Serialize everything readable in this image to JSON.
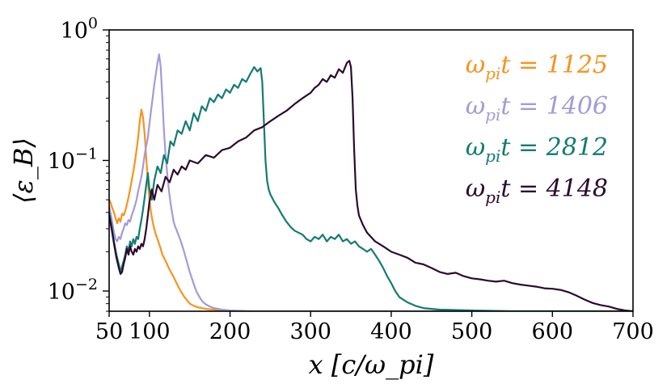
{
  "chart_data": {
    "type": "line",
    "title": "",
    "xlabel": "x [c/ω_pi]",
    "ylabel": "⟨ε_B⟩",
    "xlim": [
      50,
      700
    ],
    "ylim": [
      0.007,
      1.0
    ],
    "yscale": "log",
    "grid": false,
    "legend_position": "top-right",
    "x_ticks": [
      50,
      100,
      200,
      300,
      400,
      500,
      600,
      700
    ],
    "x_tick_labels": [
      "50",
      "100",
      "200",
      "300",
      "400",
      "500",
      "600",
      "700"
    ],
    "y_ticks": [
      0.01,
      0.1,
      1.0
    ],
    "y_tick_labels": [
      {
        "base": "10",
        "exp": "−2"
      },
      {
        "base": "10",
        "exp": "−1"
      },
      {
        "base": "10",
        "exp": "0"
      }
    ],
    "series": [
      {
        "name": "ω_pi t = 1125",
        "legend_prefix": "ω",
        "legend_sub": "pi",
        "legend_suffix": "t = 1125",
        "color": "#f7931e",
        "x": [
          50,
          52,
          54,
          56,
          58,
          60,
          62,
          64,
          66,
          68,
          70,
          72,
          74,
          76,
          78,
          80,
          82,
          84,
          86,
          88,
          90,
          92,
          94,
          96,
          98,
          100,
          102,
          104,
          106,
          108,
          110,
          112,
          114,
          116,
          118,
          120,
          122,
          124,
          126,
          128,
          130,
          132,
          134,
          136,
          138,
          140,
          142,
          144,
          146,
          148,
          150,
          155,
          160,
          170,
          180,
          190,
          200,
          230,
          260,
          300,
          400,
          500,
          600,
          700
        ],
        "y": [
          0.05,
          0.047,
          0.043,
          0.04,
          0.036,
          0.033,
          0.036,
          0.034,
          0.039,
          0.038,
          0.041,
          0.046,
          0.052,
          0.06,
          0.07,
          0.082,
          0.098,
          0.12,
          0.15,
          0.2,
          0.245,
          0.215,
          0.16,
          0.105,
          0.07,
          0.05,
          0.04,
          0.034,
          0.03,
          0.027,
          0.025,
          0.023,
          0.021,
          0.019,
          0.018,
          0.017,
          0.016,
          0.015,
          0.0142,
          0.0135,
          0.0128,
          0.0121,
          0.0114,
          0.0108,
          0.0102,
          0.0097,
          0.0093,
          0.0089,
          0.0086,
          0.0083,
          0.008,
          0.0077,
          0.0075,
          0.0073,
          0.0072,
          0.0071,
          0.007,
          0.007,
          0.007,
          0.007,
          0.007,
          0.007,
          0.007,
          0.007
        ]
      },
      {
        "name": "ω_pi t = 1406",
        "legend_prefix": "ω",
        "legend_sub": "pi",
        "legend_suffix": "t = 1406",
        "color": "#a49ad8",
        "x": [
          50,
          53,
          56,
          58,
          60,
          62,
          64,
          66,
          68,
          70,
          72,
          74,
          76,
          78,
          80,
          82,
          84,
          86,
          88,
          90,
          92,
          94,
          96,
          98,
          100,
          102,
          104,
          106,
          108,
          110,
          112,
          114,
          116,
          118,
          120,
          122,
          124,
          126,
          128,
          130,
          132,
          134,
          136,
          138,
          140,
          142,
          144,
          146,
          148,
          150,
          154,
          158,
          162,
          166,
          170,
          175,
          180,
          190,
          200,
          230,
          300,
          400,
          500,
          600,
          700
        ],
        "y": [
          0.045,
          0.036,
          0.028,
          0.025,
          0.024,
          0.026,
          0.025,
          0.028,
          0.03,
          0.033,
          0.032,
          0.035,
          0.034,
          0.038,
          0.041,
          0.045,
          0.05,
          0.058,
          0.066,
          0.075,
          0.09,
          0.11,
          0.13,
          0.15,
          0.19,
          0.24,
          0.3,
          0.38,
          0.46,
          0.56,
          0.65,
          0.52,
          0.3,
          0.17,
          0.11,
          0.08,
          0.06,
          0.048,
          0.04,
          0.034,
          0.031,
          0.029,
          0.027,
          0.025,
          0.023,
          0.021,
          0.019,
          0.0172,
          0.0155,
          0.014,
          0.0118,
          0.01,
          0.009,
          0.0083,
          0.0079,
          0.0076,
          0.0074,
          0.0072,
          0.0071,
          0.007,
          0.007,
          0.007,
          0.007,
          0.007,
          0.007
        ]
      },
      {
        "name": "ω_pi t = 2812",
        "legend_prefix": "ω",
        "legend_sub": "pi",
        "legend_suffix": "t = 2812",
        "color": "#137b73",
        "x": [
          50,
          53,
          56,
          59,
          62,
          64,
          66,
          68,
          70,
          72,
          74,
          76,
          78,
          80,
          82,
          84,
          86,
          88,
          90,
          92,
          94,
          96,
          98,
          100,
          103,
          106,
          110,
          114,
          118,
          122,
          126,
          130,
          135,
          140,
          145,
          150,
          155,
          160,
          165,
          170,
          175,
          180,
          185,
          190,
          195,
          200,
          205,
          210,
          215,
          220,
          225,
          230,
          234,
          238,
          240,
          242,
          244,
          246,
          248,
          250,
          255,
          260,
          265,
          270,
          275,
          280,
          285,
          290,
          295,
          300,
          305,
          310,
          315,
          320,
          325,
          330,
          335,
          340,
          345,
          350,
          355,
          360,
          365,
          370,
          375,
          380,
          385,
          390,
          395,
          400,
          405,
          410,
          420,
          430,
          440,
          460,
          500,
          550,
          600,
          650,
          700
        ],
        "y": [
          0.04,
          0.032,
          0.024,
          0.019,
          0.016,
          0.014,
          0.0155,
          0.017,
          0.019,
          0.022,
          0.02,
          0.024,
          0.022,
          0.025,
          0.023,
          0.026,
          0.025,
          0.03,
          0.035,
          0.042,
          0.052,
          0.065,
          0.08,
          0.06,
          0.05,
          0.07,
          0.09,
          0.08,
          0.11,
          0.095,
          0.14,
          0.13,
          0.17,
          0.16,
          0.2,
          0.17,
          0.23,
          0.2,
          0.26,
          0.24,
          0.3,
          0.28,
          0.32,
          0.3,
          0.35,
          0.33,
          0.38,
          0.36,
          0.42,
          0.4,
          0.46,
          0.52,
          0.48,
          0.51,
          0.4,
          0.2,
          0.1,
          0.07,
          0.06,
          0.055,
          0.048,
          0.043,
          0.038,
          0.034,
          0.031,
          0.029,
          0.028,
          0.027,
          0.025,
          0.024,
          0.026,
          0.025,
          0.027,
          0.024,
          0.026,
          0.025,
          0.027,
          0.024,
          0.025,
          0.023,
          0.024,
          0.022,
          0.021,
          0.02,
          0.021,
          0.019,
          0.017,
          0.015,
          0.013,
          0.0115,
          0.01,
          0.009,
          0.0082,
          0.0077,
          0.0074,
          0.0072,
          0.0071,
          0.007,
          0.007,
          0.007,
          0.007
        ]
      },
      {
        "name": "ω_pi t = 4148",
        "legend_prefix": "ω",
        "legend_sub": "pi",
        "legend_suffix": "t = 4148",
        "color": "#2d0a2e",
        "x": [
          50,
          53,
          56,
          59,
          62,
          64,
          66,
          68,
          70,
          72,
          74,
          76,
          78,
          80,
          82,
          84,
          86,
          88,
          90,
          92,
          94,
          96,
          98,
          100,
          103,
          106,
          110,
          115,
          120,
          125,
          130,
          135,
          140,
          145,
          150,
          160,
          170,
          180,
          190,
          200,
          210,
          220,
          230,
          240,
          250,
          260,
          270,
          280,
          290,
          300,
          305,
          310,
          315,
          320,
          325,
          330,
          335,
          340,
          345,
          348,
          350,
          352,
          354,
          356,
          358,
          360,
          365,
          370,
          380,
          390,
          400,
          410,
          420,
          430,
          440,
          450,
          460,
          470,
          480,
          490,
          500,
          510,
          520,
          530,
          540,
          550,
          560,
          570,
          580,
          590,
          600,
          610,
          620,
          630,
          640,
          650,
          660,
          670,
          680,
          690,
          700
        ],
        "y": [
          0.038,
          0.03,
          0.023,
          0.018,
          0.015,
          0.0135,
          0.014,
          0.016,
          0.018,
          0.021,
          0.019,
          0.022,
          0.02,
          0.019,
          0.021,
          0.02,
          0.022,
          0.021,
          0.023,
          0.022,
          0.025,
          0.03,
          0.038,
          0.048,
          0.06,
          0.05,
          0.065,
          0.058,
          0.075,
          0.068,
          0.085,
          0.078,
          0.09,
          0.085,
          0.1,
          0.095,
          0.11,
          0.105,
          0.12,
          0.125,
          0.14,
          0.15,
          0.17,
          0.18,
          0.2,
          0.22,
          0.24,
          0.27,
          0.3,
          0.33,
          0.36,
          0.38,
          0.42,
          0.4,
          0.45,
          0.43,
          0.5,
          0.47,
          0.56,
          0.58,
          0.52,
          0.3,
          0.12,
          0.06,
          0.045,
          0.038,
          0.032,
          0.028,
          0.024,
          0.022,
          0.02,
          0.019,
          0.018,
          0.0165,
          0.016,
          0.015,
          0.014,
          0.0135,
          0.0138,
          0.013,
          0.0125,
          0.0123,
          0.012,
          0.0118,
          0.012,
          0.0115,
          0.0112,
          0.011,
          0.0108,
          0.0105,
          0.0104,
          0.0102,
          0.0098,
          0.0092,
          0.0086,
          0.0081,
          0.0078,
          0.0076,
          0.0073,
          0.0071,
          0.007
        ]
      }
    ]
  }
}
